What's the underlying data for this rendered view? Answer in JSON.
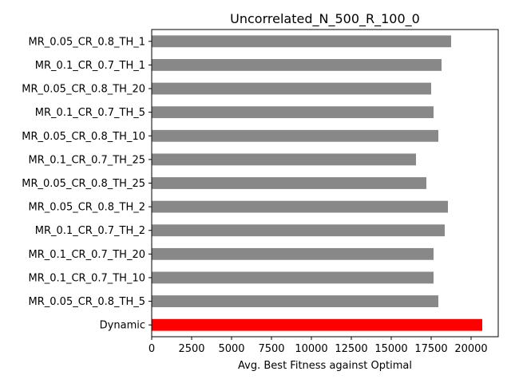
{
  "chart_data": {
    "type": "bar",
    "orientation": "horizontal",
    "title": "Uncorrelated_N_500_R_100_0",
    "xlabel": "Avg. Best Fitness against Optimal",
    "ylabel": "",
    "xlim": [
      0,
      21700
    ],
    "xticks": [
      0,
      2500,
      5000,
      7500,
      10000,
      12500,
      15000,
      17500,
      20000
    ],
    "categories": [
      "MR_0.05_CR_0.8_TH_1",
      "MR_0.1_CR_0.7_TH_1",
      "MR_0.05_CR_0.8_TH_20",
      "MR_0.1_CR_0.7_TH_5",
      "MR_0.05_CR_0.8_TH_10",
      "MR_0.1_CR_0.7_TH_25",
      "MR_0.05_CR_0.8_TH_25",
      "MR_0.05_CR_0.8_TH_2",
      "MR_0.1_CR_0.7_TH_2",
      "MR_0.1_CR_0.7_TH_20",
      "MR_0.1_CR_0.7_TH_10",
      "MR_0.05_CR_0.8_TH_5",
      "Dynamic"
    ],
    "values": [
      18750,
      18150,
      17500,
      17650,
      17950,
      16550,
      17200,
      18550,
      18350,
      17650,
      17650,
      17950,
      20700
    ],
    "colors": [
      "#888888",
      "#888888",
      "#888888",
      "#888888",
      "#888888",
      "#888888",
      "#888888",
      "#888888",
      "#888888",
      "#888888",
      "#888888",
      "#888888",
      "#ff0000"
    ],
    "grid": false,
    "legend": false
  }
}
